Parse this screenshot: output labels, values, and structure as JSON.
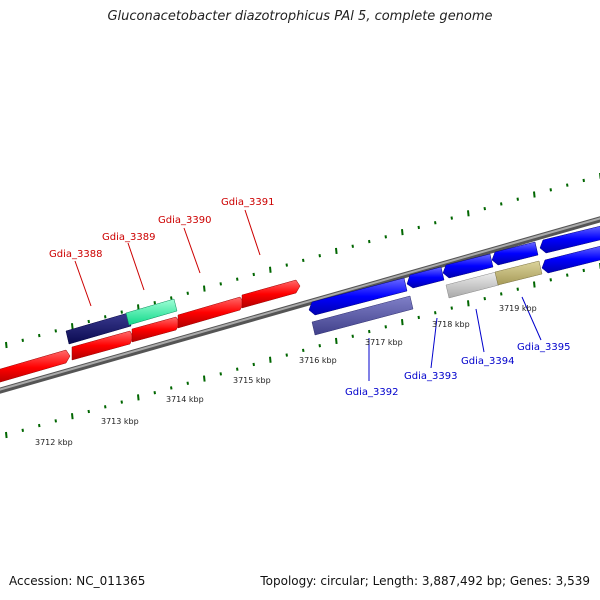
{
  "title": "Gluconacetobacter diazotrophicus PAl 5, complete genome",
  "footer": {
    "accession": "Accession: NC_011365",
    "summary": "Topology: circular; Length: 3,887,492 bp; Genes: 3,539"
  },
  "colors": {
    "forward_gene": "#ff0000",
    "reverse_gene": "#0000ff",
    "forward_label": "#cc0000",
    "reverse_label": "#0000cc",
    "backbone": "#888888",
    "tick": "#006600"
  },
  "scale_ticks": [
    {
      "label": "3712 kbp"
    },
    {
      "label": "3713 kbp"
    },
    {
      "label": "3714 kbp"
    },
    {
      "label": "3715 kbp"
    },
    {
      "label": "3716 kbp"
    },
    {
      "label": "3717 kbp"
    },
    {
      "label": "3718 kbp"
    },
    {
      "label": "3719 kbp"
    }
  ],
  "forward_labels": [
    "Gdia_3388",
    "Gdia_3389",
    "Gdia_3390",
    "Gdia_3391"
  ],
  "reverse_labels": [
    "Gdia_3392",
    "Gdia_3393",
    "Gdia_3394",
    "Gdia_3395"
  ]
}
